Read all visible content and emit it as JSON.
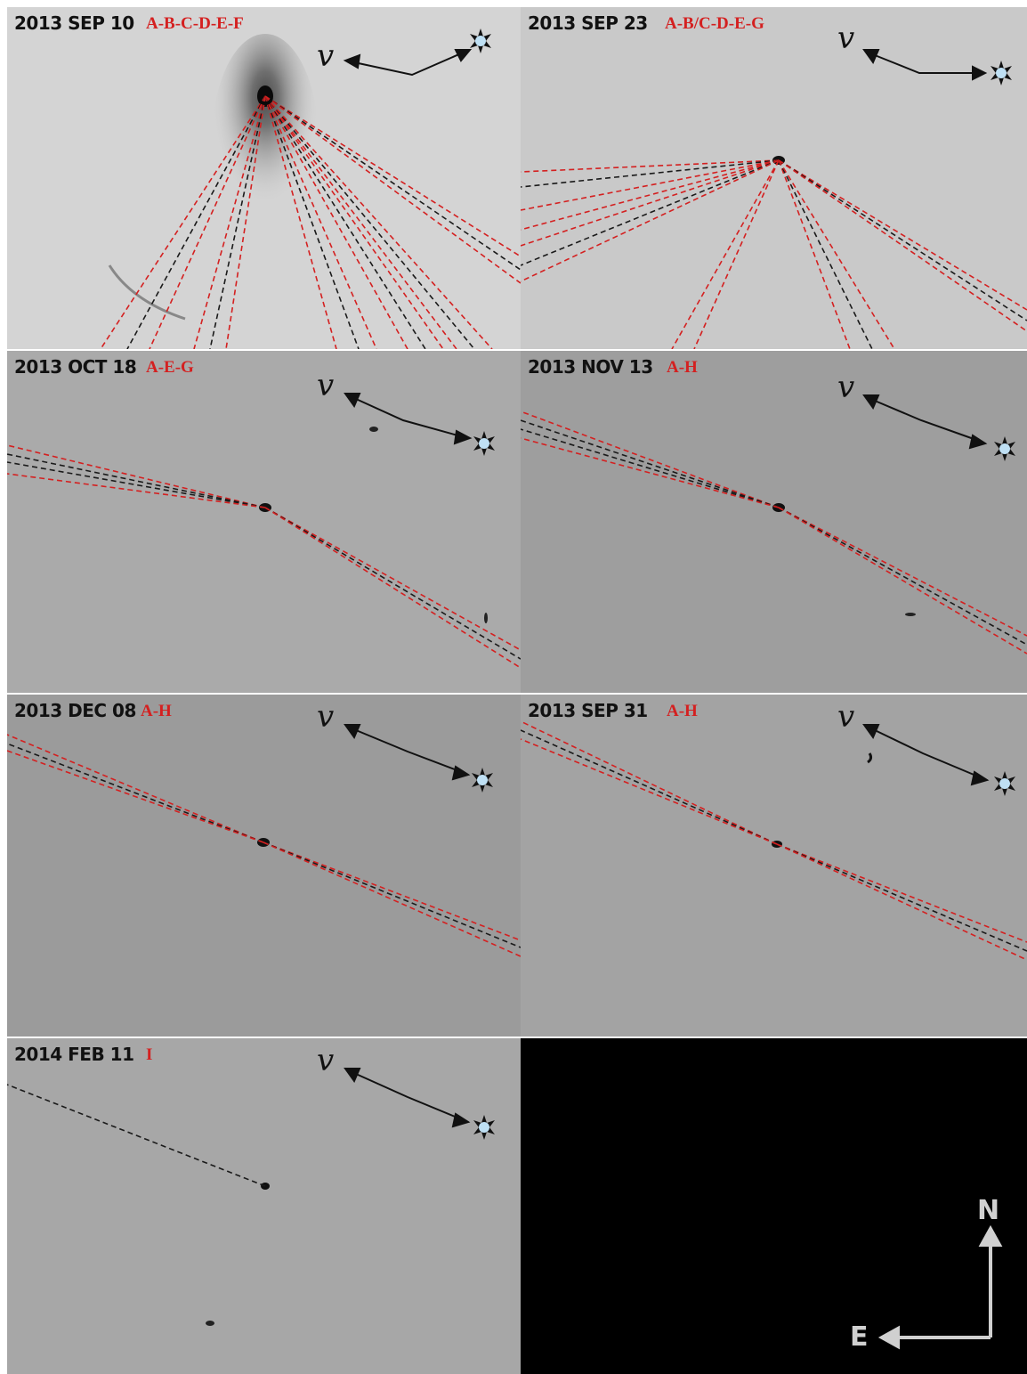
{
  "panels": [
    {
      "date": "2013 SEP 10",
      "sequence": "A-B-C-D-E-F"
    },
    {
      "date": "2013 SEP 23",
      "sequence": "A-B/C-D-E-G"
    },
    {
      "date": "2013 OCT 18",
      "sequence": "A-E-G"
    },
    {
      "date": "2013 NOV 13",
      "sequence": "A-H"
    },
    {
      "date": "2013 DEC 08",
      "sequence": "A-H"
    },
    {
      "date": "2013 SEP 31",
      "sequence": "A-H"
    },
    {
      "date": "2014 FEB 11",
      "sequence": "I"
    }
  ],
  "velocity_symbol": "v",
  "compass": {
    "north": "N",
    "east": "E"
  },
  "colors": {
    "sequence_label": "#d42020",
    "red_line": "#d42020",
    "black_line": "#1a1a1a",
    "compass_panel": "#000000"
  },
  "icons": {
    "sun": "sun-icon",
    "velocity_arrow": "velocity-arrow-icon"
  }
}
